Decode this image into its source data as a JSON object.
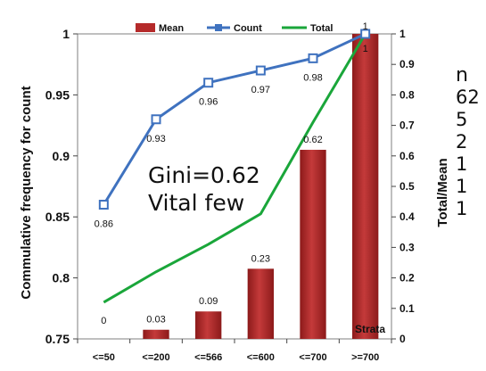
{
  "chart_data": {
    "type": "bar",
    "categories": [
      "<=50",
      "<=200",
      "<=566",
      "<=600",
      "<=700",
      ">=700"
    ],
    "series": [
      {
        "name": "Mean",
        "kind": "bar",
        "axis": "right",
        "color": "#b52a2a",
        "values": [
          0,
          0.03,
          0.09,
          0.23,
          0.62,
          1
        ],
        "labels": [
          "0",
          "0.03",
          "0.09",
          "0.23",
          "0.62",
          "1"
        ]
      },
      {
        "name": "Count",
        "kind": "line-marker",
        "axis": "left",
        "color": "#3f72bf",
        "values": [
          0.86,
          0.93,
          0.96,
          0.97,
          0.98,
          1
        ],
        "labels": [
          "0.86",
          "0.93",
          "0.96",
          "0.97",
          "0.98",
          "1"
        ]
      },
      {
        "name": "Total",
        "kind": "line",
        "axis": "right",
        "color": "#1aa63a",
        "values": [
          0.12,
          0.22,
          0.31,
          0.41,
          0.71,
          1
        ]
      }
    ],
    "ylabel": "Commulative frequency for count",
    "y2label": "Total/Mean",
    "ylim": [
      0.75,
      1
    ],
    "yticks": [
      "0.75",
      "0.8",
      "0.85",
      "0.9",
      "0.95",
      "1"
    ],
    "y2lim": [
      0,
      1
    ],
    "y2ticks": [
      "0",
      "0.1",
      "0.2",
      "0.3",
      "0.4",
      "0.5",
      "0.6",
      "0.7",
      "0.8",
      "0.9",
      "1"
    ],
    "annotation": [
      "Gini=0.62",
      "Vital few"
    ],
    "xlabel": "Strata",
    "legend_position": "top",
    "grid": false
  },
  "side_text": {
    "header": "n",
    "values": [
      "62",
      "5",
      "2",
      "1",
      "1",
      "1"
    ]
  }
}
